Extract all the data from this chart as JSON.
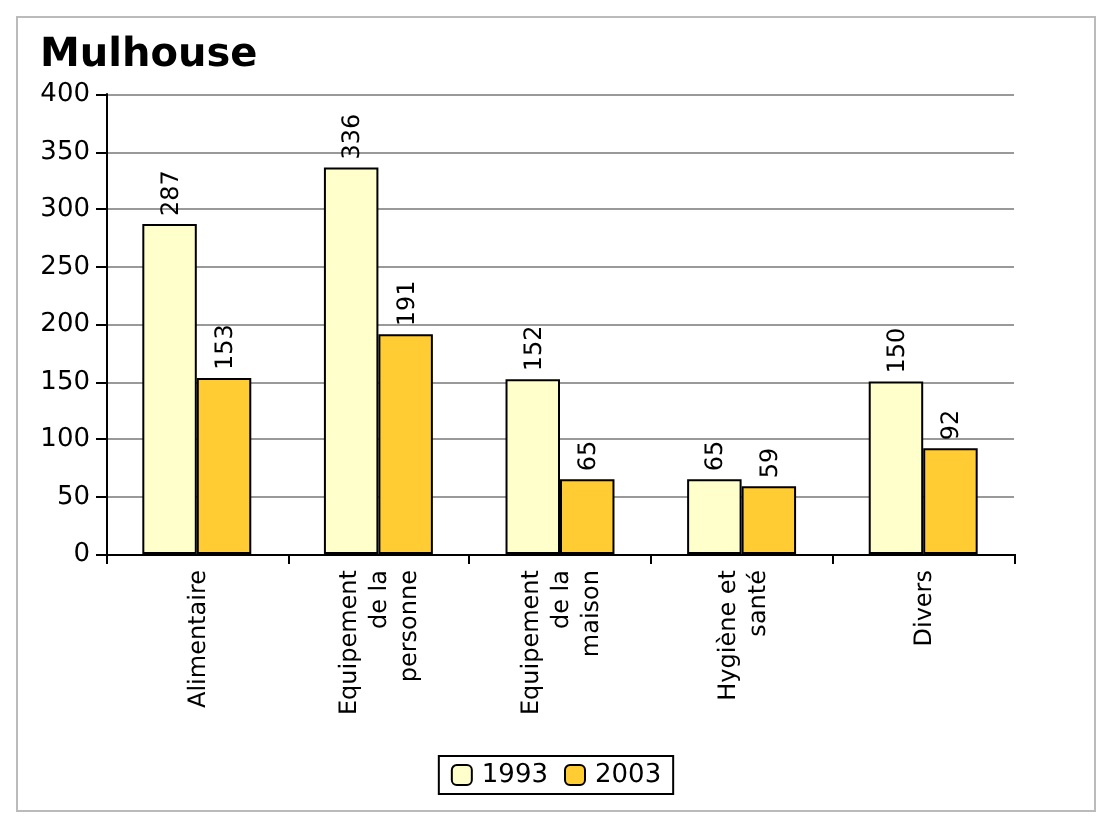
{
  "chart_data": {
    "type": "bar",
    "title": "Mulhouse",
    "categories": [
      "Alimentaire",
      "Equipement de la personne",
      "Equipement de la maison",
      "Hygiène et santé",
      "Divers"
    ],
    "series": [
      {
        "name": "1993",
        "color": "#ffffcc",
        "values": [
          287,
          336,
          152,
          65,
          150
        ]
      },
      {
        "name": "2003",
        "color": "#ffcc33",
        "values": [
          153,
          191,
          65,
          59,
          92
        ]
      }
    ],
    "ylim": [
      0,
      400
    ],
    "yticks": [
      0,
      50,
      100,
      150,
      200,
      250,
      300,
      350,
      400
    ],
    "grid": "y",
    "legend": "bottom",
    "data_labels": true
  }
}
